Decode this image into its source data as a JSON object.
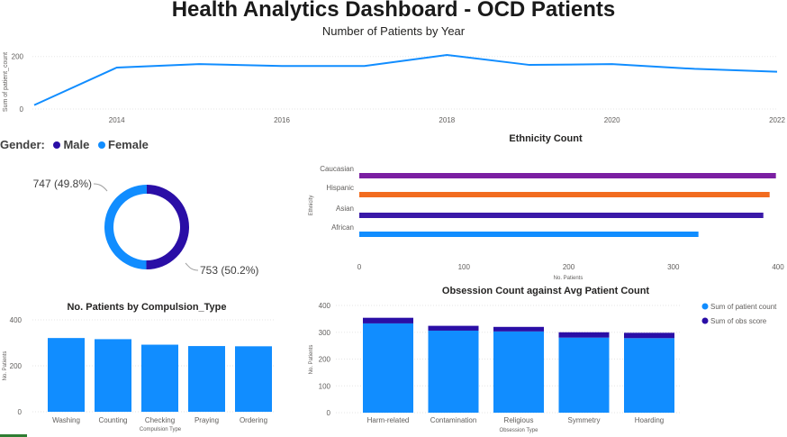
{
  "header": {
    "title": "Health Analytics Dashboard - OCD Patients",
    "subtitle": "Number of Patients by Year"
  },
  "colors": {
    "primary_blue": "#118dff",
    "dark_navy": "#2a0ea6",
    "purple": "#7b1fa2",
    "orange": "#f26c1f",
    "indigo": "#3a19a8"
  },
  "chart_data": [
    {
      "id": "patients_by_year",
      "type": "line",
      "ylabel": "Sum of patient_count",
      "xlabel": "",
      "x": [
        2013,
        2014,
        2015,
        2016,
        2017,
        2018,
        2019,
        2020,
        2021,
        2022
      ],
      "x_ticks": [
        "2014",
        "2016",
        "2018",
        "2020",
        "2022"
      ],
      "y_ticks": [
        "0",
        "200"
      ],
      "values": [
        15,
        158,
        171,
        164,
        164,
        206,
        168,
        171,
        153,
        142
      ],
      "ylim": [
        0,
        230
      ],
      "grid": true
    },
    {
      "id": "gender",
      "type": "pie",
      "legend_title": "Gender:",
      "labels": [
        "Male",
        "Female"
      ],
      "values": [
        753,
        747
      ],
      "data_labels": [
        "753 (50.2%)",
        "747 (49.8%)"
      ],
      "colors": [
        "#2a0ea6",
        "#118dff"
      ],
      "legend": "top-left"
    },
    {
      "id": "ethnicity",
      "type": "bar",
      "orientation": "horizontal",
      "title": "Ethnicity Count",
      "ylabel": "Ethnicity",
      "xlabel": "No. Patients",
      "categories": [
        "Caucasian",
        "Hispanic",
        "Asian",
        "African"
      ],
      "values": [
        398,
        392,
        386,
        324
      ],
      "colors": [
        "#7b1fa2",
        "#f26c1f",
        "#3a19a8",
        "#118dff"
      ],
      "x_ticks": [
        "0",
        "100",
        "200",
        "300",
        "400"
      ],
      "xlim": [
        0,
        400
      ]
    },
    {
      "id": "compulsion",
      "type": "bar",
      "title": "No. Patients by Compulsion_Type",
      "xlabel": "Compulsion Type",
      "ylabel": "No. Patients",
      "categories": [
        "Washing",
        "Counting",
        "Checking",
        "Praying",
        "Ordering"
      ],
      "values": [
        321,
        316,
        292,
        286,
        285
      ],
      "y_ticks": [
        "0",
        "200",
        "400"
      ],
      "ylim": [
        0,
        400
      ],
      "grid": true
    },
    {
      "id": "obsession",
      "type": "bar",
      "stacked": true,
      "title": "Obsession Count against Avg Patient Count",
      "xlabel": "Obsession Type",
      "ylabel": "No. Patients",
      "categories": [
        "Harm-related",
        "Contamination",
        "Religious",
        "Symmetry",
        "Hoarding"
      ],
      "series": [
        {
          "name": "Sum of patient count",
          "values": [
            333,
            306,
            303,
            280,
            278
          ],
          "color": "#118dff"
        },
        {
          "name": "Sum of obs score",
          "values": [
            21,
            18,
            17,
            20,
            20
          ],
          "color": "#2a0ea6"
        }
      ],
      "y_ticks": [
        "0",
        "100",
        "200",
        "300",
        "400"
      ],
      "ylim": [
        0,
        400
      ],
      "legend": "right",
      "grid": true
    }
  ]
}
